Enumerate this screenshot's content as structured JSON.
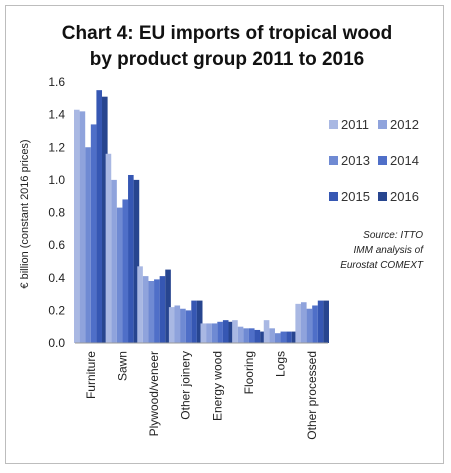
{
  "chart_data": {
    "type": "bar",
    "title_lines": [
      "Chart 4: EU imports of tropical wood",
      "by product group 2011 to 2016"
    ],
    "ylabel": "€ billion (constant 2016 prices)",
    "xlabel": "",
    "ylim": [
      0,
      1.6
    ],
    "yticks": [
      0.0,
      0.2,
      0.4,
      0.6,
      0.8,
      1.0,
      1.2,
      1.4,
      1.6
    ],
    "ytick_labels": [
      "0.0",
      "0.2",
      "0.4",
      "0.6",
      "0.8",
      "1.0",
      "1.2",
      "1.4",
      "1.6"
    ],
    "grid": false,
    "legend_position": "right",
    "categories": [
      "Furniture",
      "Sawn",
      "Plywood/veneer",
      "Other joinery",
      "Energy wood",
      "Flooring",
      "Logs",
      "Other processed"
    ],
    "series": [
      {
        "name": "2011",
        "color": "#a9b8e3",
        "values": [
          1.43,
          1.16,
          0.47,
          0.22,
          0.12,
          0.14,
          0.14,
          0.24
        ]
      },
      {
        "name": "2012",
        "color": "#8fa3dc",
        "values": [
          1.42,
          1.0,
          0.41,
          0.23,
          0.12,
          0.1,
          0.09,
          0.25
        ]
      },
      {
        "name": "2013",
        "color": "#6f8ad3",
        "values": [
          1.2,
          0.83,
          0.38,
          0.21,
          0.12,
          0.09,
          0.06,
          0.21
        ]
      },
      {
        "name": "2014",
        "color": "#4f6fc8",
        "values": [
          1.34,
          0.88,
          0.39,
          0.2,
          0.13,
          0.09,
          0.07,
          0.23
        ]
      },
      {
        "name": "2015",
        "color": "#3657b3",
        "values": [
          1.55,
          1.03,
          0.41,
          0.26,
          0.14,
          0.08,
          0.07,
          0.26
        ]
      },
      {
        "name": "2016",
        "color": "#27458f",
        "values": [
          1.51,
          1.0,
          0.45,
          0.26,
          0.13,
          0.07,
          0.07,
          0.26
        ]
      }
    ],
    "source_note": [
      "Source: ITTO",
      "IMM analysis of",
      "Eurostat COMEXT"
    ]
  }
}
